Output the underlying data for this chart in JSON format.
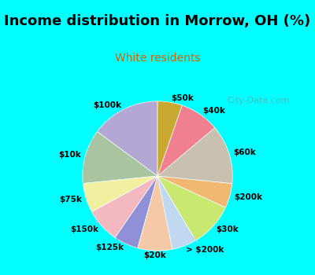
{
  "title": "Income distribution in Morrow, OH (%)",
  "subtitle": "White residents",
  "background_top": "#00ffff",
  "background_chart": "#e8f5e9",
  "watermark": "City-Data.com",
  "segments": [
    {
      "label": "$100k",
      "value": 14,
      "color": "#b3a8d4"
    },
    {
      "label": "$10k",
      "value": 11,
      "color": "#a8c4a0"
    },
    {
      "label": "$75k",
      "value": 6,
      "color": "#f0f0a0"
    },
    {
      "label": "$150k",
      "value": 7,
      "color": "#f4b8c0"
    },
    {
      "label": "$125k",
      "value": 5,
      "color": "#9090d8"
    },
    {
      "label": "$20k",
      "value": 7,
      "color": "#f5c8a8"
    },
    {
      "label": "> $200k",
      "value": 5,
      "color": "#c0d8f0"
    },
    {
      "label": "$30k",
      "value": 9,
      "color": "#c8e870"
    },
    {
      "label": "$200k",
      "value": 5,
      "color": "#f0b870"
    },
    {
      "label": "$60k",
      "value": 12,
      "color": "#c8c0b0"
    },
    {
      "label": "$40k",
      "value": 8,
      "color": "#f08090"
    },
    {
      "label": "$50k",
      "value": 5,
      "color": "#c8a830"
    }
  ],
  "label_fontsize": 7.5,
  "title_fontsize": 13,
  "subtitle_fontsize": 10,
  "start_angle": 90
}
